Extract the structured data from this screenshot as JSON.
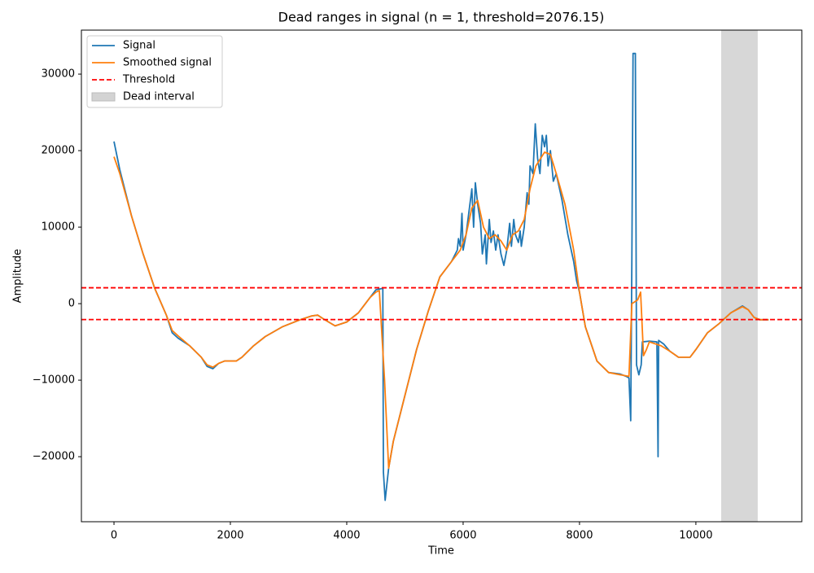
{
  "chart_data": {
    "type": "line",
    "title": "Dead ranges in signal (n = 1, threshold=2076.15)",
    "x_label": "Time",
    "y_label": "Amplitude",
    "xlim": [
      -560,
      11820
    ],
    "ylim": [
      -28500,
      35750
    ],
    "xticks": [
      0,
      2000,
      4000,
      6000,
      8000,
      10000
    ],
    "yticks": [
      {
        "value": -20000,
        "label": "−20000"
      },
      {
        "value": -10000,
        "label": "−10000"
      },
      0,
      10000,
      20000,
      30000
    ],
    "legend": "upper left",
    "series": [
      {
        "name": "Signal",
        "color": "#1f77b4",
        "x": [
          0,
          100,
          300,
          500,
          700,
          900,
          1000,
          1100,
          1300,
          1500,
          1600,
          1700,
          1800,
          1900,
          2100,
          2200,
          2400,
          2600,
          2900,
          3200,
          3400,
          3500,
          3600,
          3800,
          4000,
          4200,
          4400,
          4500,
          4620,
          4630,
          4660,
          4720,
          4800,
          5000,
          5200,
          5400,
          5600,
          5800,
          5900,
          5920,
          5950,
          5980,
          6000,
          6050,
          6100,
          6150,
          6180,
          6210,
          6250,
          6300,
          6330,
          6380,
          6400,
          6450,
          6480,
          6520,
          6560,
          6600,
          6650,
          6700,
          6750,
          6800,
          6830,
          6870,
          6900,
          6950,
          6980,
          7000,
          7050,
          7100,
          7130,
          7150,
          7200,
          7240,
          7280,
          7320,
          7360,
          7400,
          7430,
          7460,
          7500,
          7550,
          7600,
          7700,
          7800,
          7900,
          7950,
          8000,
          8100,
          8300,
          8500,
          8700,
          8800,
          8850,
          8880,
          8900,
          8920,
          8960,
          8980,
          9020,
          9060,
          9080,
          9200,
          9330,
          9350,
          9360,
          9450,
          9550,
          9700,
          9900,
          10000,
          10200,
          10400,
          10600,
          10800,
          10900,
          11000,
          11100,
          11250
        ],
        "values": [
          21200,
          17500,
          11500,
          6500,
          2000,
          -1500,
          -3800,
          -4500,
          -5500,
          -7000,
          -8200,
          -8500,
          -7800,
          -7500,
          -7500,
          -7000,
          -5500,
          -4300,
          -3000,
          -2100,
          -1600,
          -1500,
          -2000,
          -2900,
          -2400,
          -1200,
          800,
          1800,
          2000,
          -22000,
          -25700,
          -21500,
          -18000,
          -12000,
          -6000,
          -1000,
          3500,
          5500,
          7000,
          8500,
          7500,
          11800,
          7000,
          9000,
          12000,
          15000,
          10000,
          15800,
          13000,
          10500,
          6500,
          9000,
          5200,
          11000,
          8000,
          9500,
          7000,
          9000,
          6500,
          5000,
          7000,
          10500,
          7500,
          11000,
          9000,
          8000,
          9500,
          7500,
          10000,
          14500,
          13000,
          18000,
          17000,
          23500,
          19000,
          17000,
          22000,
          20500,
          22000,
          18000,
          20000,
          16000,
          17000,
          13500,
          9000,
          5500,
          3000,
          1500,
          -3000,
          -7500,
          -9000,
          -9200,
          -9500,
          -9700,
          -15300,
          6000,
          32700,
          32700,
          -8000,
          -9300,
          -8000,
          -5000,
          -4900,
          -5000,
          -20000,
          -4800,
          -5300,
          -6200,
          -7000,
          -7000,
          -6000,
          -3800,
          -2600,
          -1200,
          -300,
          -800,
          -1800,
          -2100,
          -2100
        ]
      },
      {
        "name": "Smoothed signal",
        "color": "#ff7f0e",
        "x": [
          0,
          100,
          300,
          500,
          700,
          900,
          1000,
          1100,
          1300,
          1500,
          1600,
          1700,
          1800,
          1900,
          2100,
          2200,
          2400,
          2600,
          2900,
          3200,
          3400,
          3500,
          3600,
          3800,
          4000,
          4200,
          4400,
          4500,
          4560,
          4650,
          4720,
          4800,
          5000,
          5200,
          5400,
          5600,
          5800,
          5950,
          6050,
          6150,
          6250,
          6350,
          6450,
          6550,
          6650,
          6750,
          6850,
          6950,
          7050,
          7150,
          7250,
          7400,
          7500,
          7600,
          7750,
          7900,
          8000,
          8100,
          8300,
          8500,
          8700,
          8850,
          8900,
          9000,
          9050,
          9100,
          9150,
          9200,
          9400,
          9550,
          9700,
          9900,
          10000,
          10200,
          10400,
          10600,
          10800,
          10900,
          11000,
          11100,
          11250
        ],
        "values": [
          19200,
          17000,
          11500,
          6500,
          2000,
          -1500,
          -3500,
          -4200,
          -5500,
          -7000,
          -8000,
          -8300,
          -7800,
          -7500,
          -7500,
          -7000,
          -5500,
          -4300,
          -3000,
          -2100,
          -1600,
          -1500,
          -2000,
          -2900,
          -2400,
          -1200,
          800,
          1500,
          1700,
          -10000,
          -21500,
          -18000,
          -12000,
          -6000,
          -1000,
          3500,
          5500,
          7000,
          9000,
          12500,
          13500,
          10000,
          8500,
          9000,
          8200,
          7000,
          9000,
          9500,
          11000,
          15000,
          18000,
          19800,
          19500,
          17000,
          13000,
          7000,
          1500,
          -3000,
          -7500,
          -9000,
          -9300,
          -9500,
          0,
          500,
          1500,
          -6800,
          -6000,
          -5000,
          -5500,
          -6200,
          -7000,
          -7000,
          -6000,
          -3800,
          -2600,
          -1200,
          -400,
          -800,
          -1800,
          -2100,
          -2100
        ]
      }
    ],
    "threshold": {
      "name": "Threshold",
      "color": "#ff0000",
      "values": [
        2076.15,
        -2076.15
      ]
    },
    "spans": [
      {
        "name": "Dead interval",
        "color": "#d3d3d3",
        "x": [
          10434,
          11063
        ]
      }
    ]
  }
}
